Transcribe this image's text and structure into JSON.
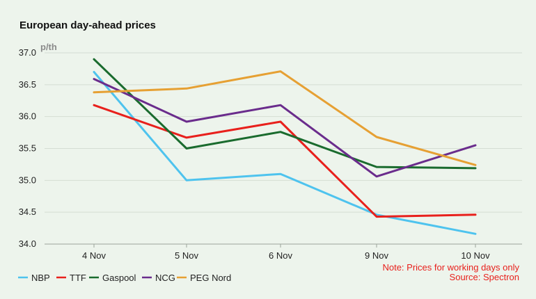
{
  "chart_data": {
    "type": "line",
    "title": "European day-ahead prices",
    "ylabel": "p/th",
    "categories": [
      "4 Nov",
      "5 Nov",
      "6 Nov",
      "9 Nov",
      "10 Nov"
    ],
    "ylim": [
      34.0,
      37.0
    ],
    "yticks": [
      "34.0",
      "34.5",
      "35.0",
      "35.5",
      "36.0",
      "36.5",
      "37.0"
    ],
    "grid": true,
    "legend_position": "bottom-left",
    "series": [
      {
        "name": "NBP",
        "color": "#4ec3ee",
        "values": [
          36.7,
          35.0,
          35.1,
          34.46,
          34.16
        ]
      },
      {
        "name": "TTF",
        "color": "#e8201c",
        "values": [
          36.18,
          35.67,
          35.92,
          34.43,
          34.46
        ]
      },
      {
        "name": "Gaspool",
        "color": "#1a6b2e",
        "values": [
          36.9,
          35.5,
          35.76,
          35.21,
          35.19
        ]
      },
      {
        "name": "NCG",
        "color": "#6a2c8c",
        "values": [
          36.59,
          35.92,
          36.18,
          35.06,
          35.55
        ]
      },
      {
        "name": "PEG Nord",
        "color": "#e6a033",
        "values": [
          36.38,
          36.44,
          36.71,
          35.68,
          35.24
        ]
      }
    ]
  },
  "notes": {
    "line1": "Note: Prices for working days only",
    "line2": "Source: Spectron"
  }
}
